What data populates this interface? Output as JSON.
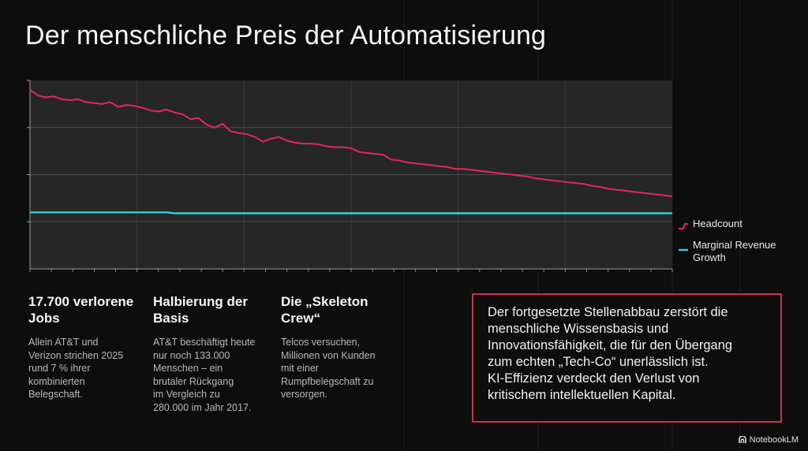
{
  "title": "Der menschliche Preis der Automatisierung",
  "chart_data": {
    "type": "line",
    "title": "",
    "xlabel": "",
    "ylabel": "",
    "x": [
      0,
      1,
      2,
      3,
      4,
      5,
      6,
      7,
      8,
      9,
      10,
      11,
      12,
      13,
      14,
      15,
      16,
      17,
      18,
      19,
      20,
      21,
      22,
      23,
      24,
      25,
      26,
      27,
      28,
      29,
      30,
      31,
      32,
      33,
      34,
      35,
      36,
      37,
      38,
      39,
      40,
      41,
      42,
      43,
      44,
      45,
      46,
      47,
      48,
      49,
      50,
      51,
      52,
      53,
      54,
      55,
      56,
      57,
      58,
      59,
      60,
      61,
      62,
      63,
      64,
      65,
      66,
      67,
      68,
      69,
      70,
      71,
      72,
      73,
      74,
      75,
      76,
      77,
      78,
      79,
      80
    ],
    "xlim": [
      0,
      80
    ],
    "ylim": [
      0,
      100
    ],
    "grid": true,
    "legend": "right",
    "colors": {
      "headcount": "#e0285a",
      "revenue": "#2fd0e0"
    },
    "series": [
      {
        "name": "Headcount",
        "values": [
          95,
          92,
          91,
          91.5,
          90,
          89.5,
          90,
          88.5,
          88,
          87.5,
          88.5,
          86,
          87,
          86.5,
          85.5,
          84,
          83.5,
          84.5,
          83,
          82,
          79.5,
          80,
          76.5,
          75,
          77,
          73,
          72,
          71.5,
          70,
          67.5,
          69,
          70,
          68,
          67,
          66.5,
          66.5,
          66,
          65,
          64.5,
          64.5,
          64,
          62,
          61.5,
          61,
          60.5,
          58,
          57.5,
          56.5,
          56,
          55.5,
          55,
          54.5,
          54,
          53,
          53,
          52.5,
          52,
          51.5,
          51,
          50.5,
          50,
          49.5,
          49,
          48,
          47.5,
          47,
          46.5,
          46,
          45.5,
          45,
          44,
          43.5,
          42.5,
          42,
          41.5,
          41,
          40.5,
          40,
          39.5,
          39,
          38.5
        ]
      },
      {
        "name": "Marginal Revenue Growth",
        "values": [
          30,
          30,
          30,
          30,
          30,
          30,
          30,
          30,
          30,
          30,
          30,
          30,
          30,
          30,
          30,
          30,
          30,
          30,
          29.5,
          29.5,
          29.5,
          29.5,
          29.5,
          29.5,
          29.5,
          29.5,
          29.5,
          29.5,
          29.5,
          29.5,
          29.5,
          29.5,
          29.5,
          29.5,
          29.5,
          29.5,
          29.5,
          29.5,
          29.5,
          29.5,
          29.5,
          29.5,
          29.5,
          29.5,
          29.5,
          29.5,
          29.5,
          29.5,
          29.5,
          29.5,
          29.5,
          29.5,
          29.5,
          29.5,
          29.5,
          29.5,
          29.5,
          29.5,
          29.5,
          29.5,
          29.5,
          29.5,
          29.5,
          29.5,
          29.5,
          29.5,
          29.5,
          29.5,
          29.5,
          29.5,
          29.5,
          29.5,
          29.5,
          29.5,
          29.5,
          29.5,
          29.5,
          29.5,
          29.5,
          29.5,
          29.5
        ]
      }
    ]
  },
  "legend": {
    "headcount": "Headcount",
    "revenue_line1": "Marginal Revenue",
    "revenue_line2": "Growth"
  },
  "stats": [
    {
      "title_line1": "17.700 verlorene",
      "title_line2": "Jobs",
      "text": [
        "Allein AT&T und",
        "Verizon strichen 2025",
        "rund 7 % ihrer",
        "kombinierten",
        "Belegschaft."
      ]
    },
    {
      "title_line1": "Halbierung der",
      "title_line2": "Basis",
      "text": [
        "AT&T beschäftigt heute",
        "nur noch 133.000",
        "Menschen – ein",
        "brutaler Rückgang",
        "im Vergleich zu",
        "280.000 im Jahr 2017."
      ]
    },
    {
      "title_line1": "Die „Skeleton",
      "title_line2": "Crew“",
      "text": [
        "Telcos versuchen,",
        "Millionen von Kunden",
        "mit einer",
        "Rumpfbelegschaft zu",
        "versorgen."
      ]
    }
  ],
  "callout": {
    "lines": [
      "Der fortgesetzte Stellenabbau zerstört die",
      "menschliche Wissensbasis und",
      "Innovationsfähigkeit, die für den Übergang",
      "zum echten „Tech-Co“ unerlässlich ist.",
      "KI-Effizienz verdeckt den Verlust von",
      "kritischem intellektuellen Kapital."
    ]
  },
  "brand": {
    "label": "NotebookLM",
    "icon": "notebooklm-logo-icon"
  }
}
